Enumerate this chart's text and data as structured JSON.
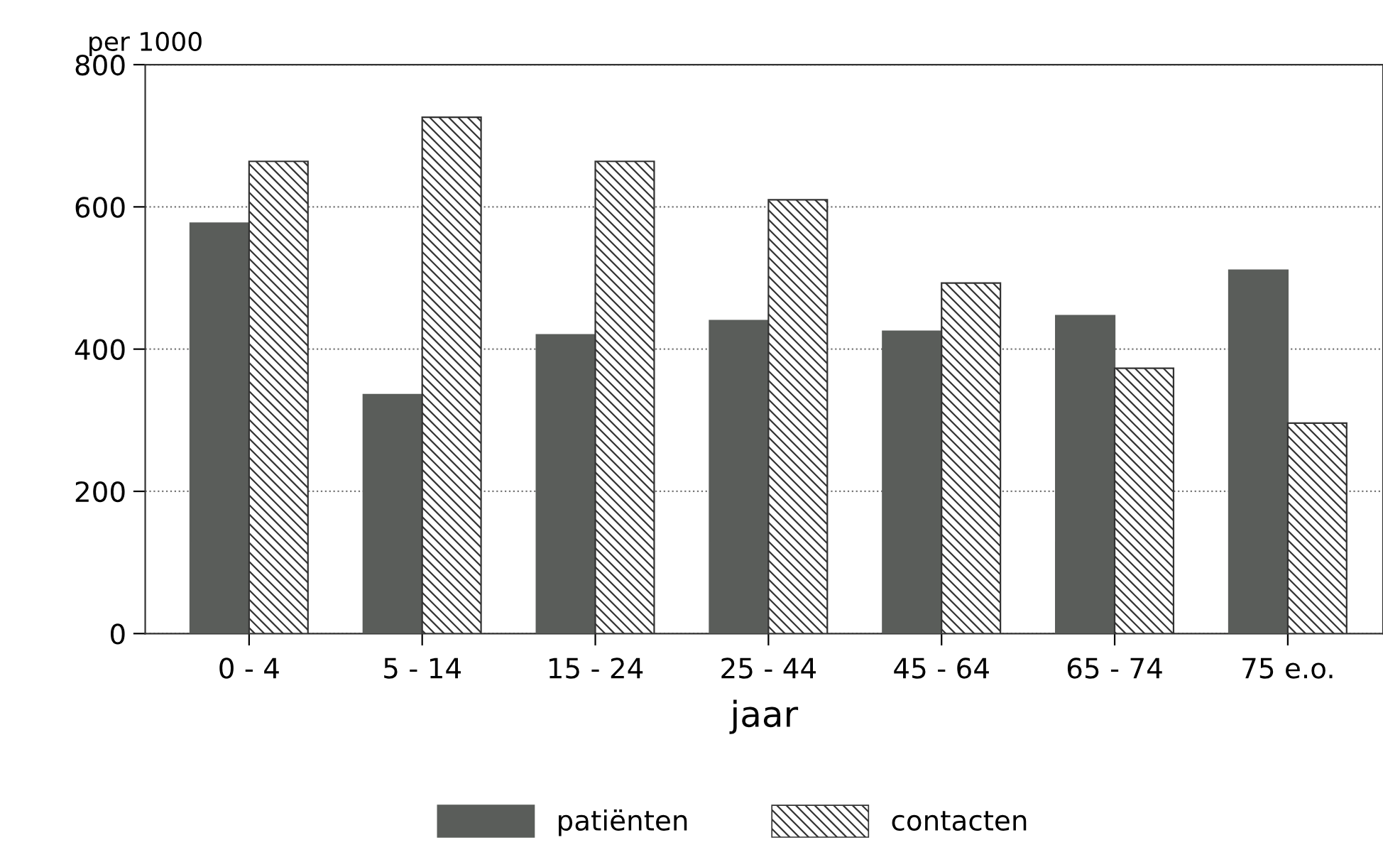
{
  "chart_data": {
    "type": "bar",
    "ylabel": "per 1000",
    "xlabel": "jaar",
    "categories": [
      "0 - 4",
      "5 - 14",
      "15 - 24",
      "25 - 44",
      "45 - 64",
      "65 - 74",
      "75 e.o."
    ],
    "series": [
      {
        "name": "patiënten",
        "color": "#5a5d5a",
        "values": [
          577,
          336,
          420,
          440,
          425,
          447,
          511
        ]
      },
      {
        "name": "contacten",
        "color": "#333333",
        "values": [
          664,
          726,
          664,
          610,
          493,
          373,
          296
        ]
      }
    ],
    "ylim": [
      0,
      800
    ],
    "yticks": [
      0,
      200,
      400,
      600,
      800
    ],
    "grid": "y",
    "legend": "bottom"
  }
}
